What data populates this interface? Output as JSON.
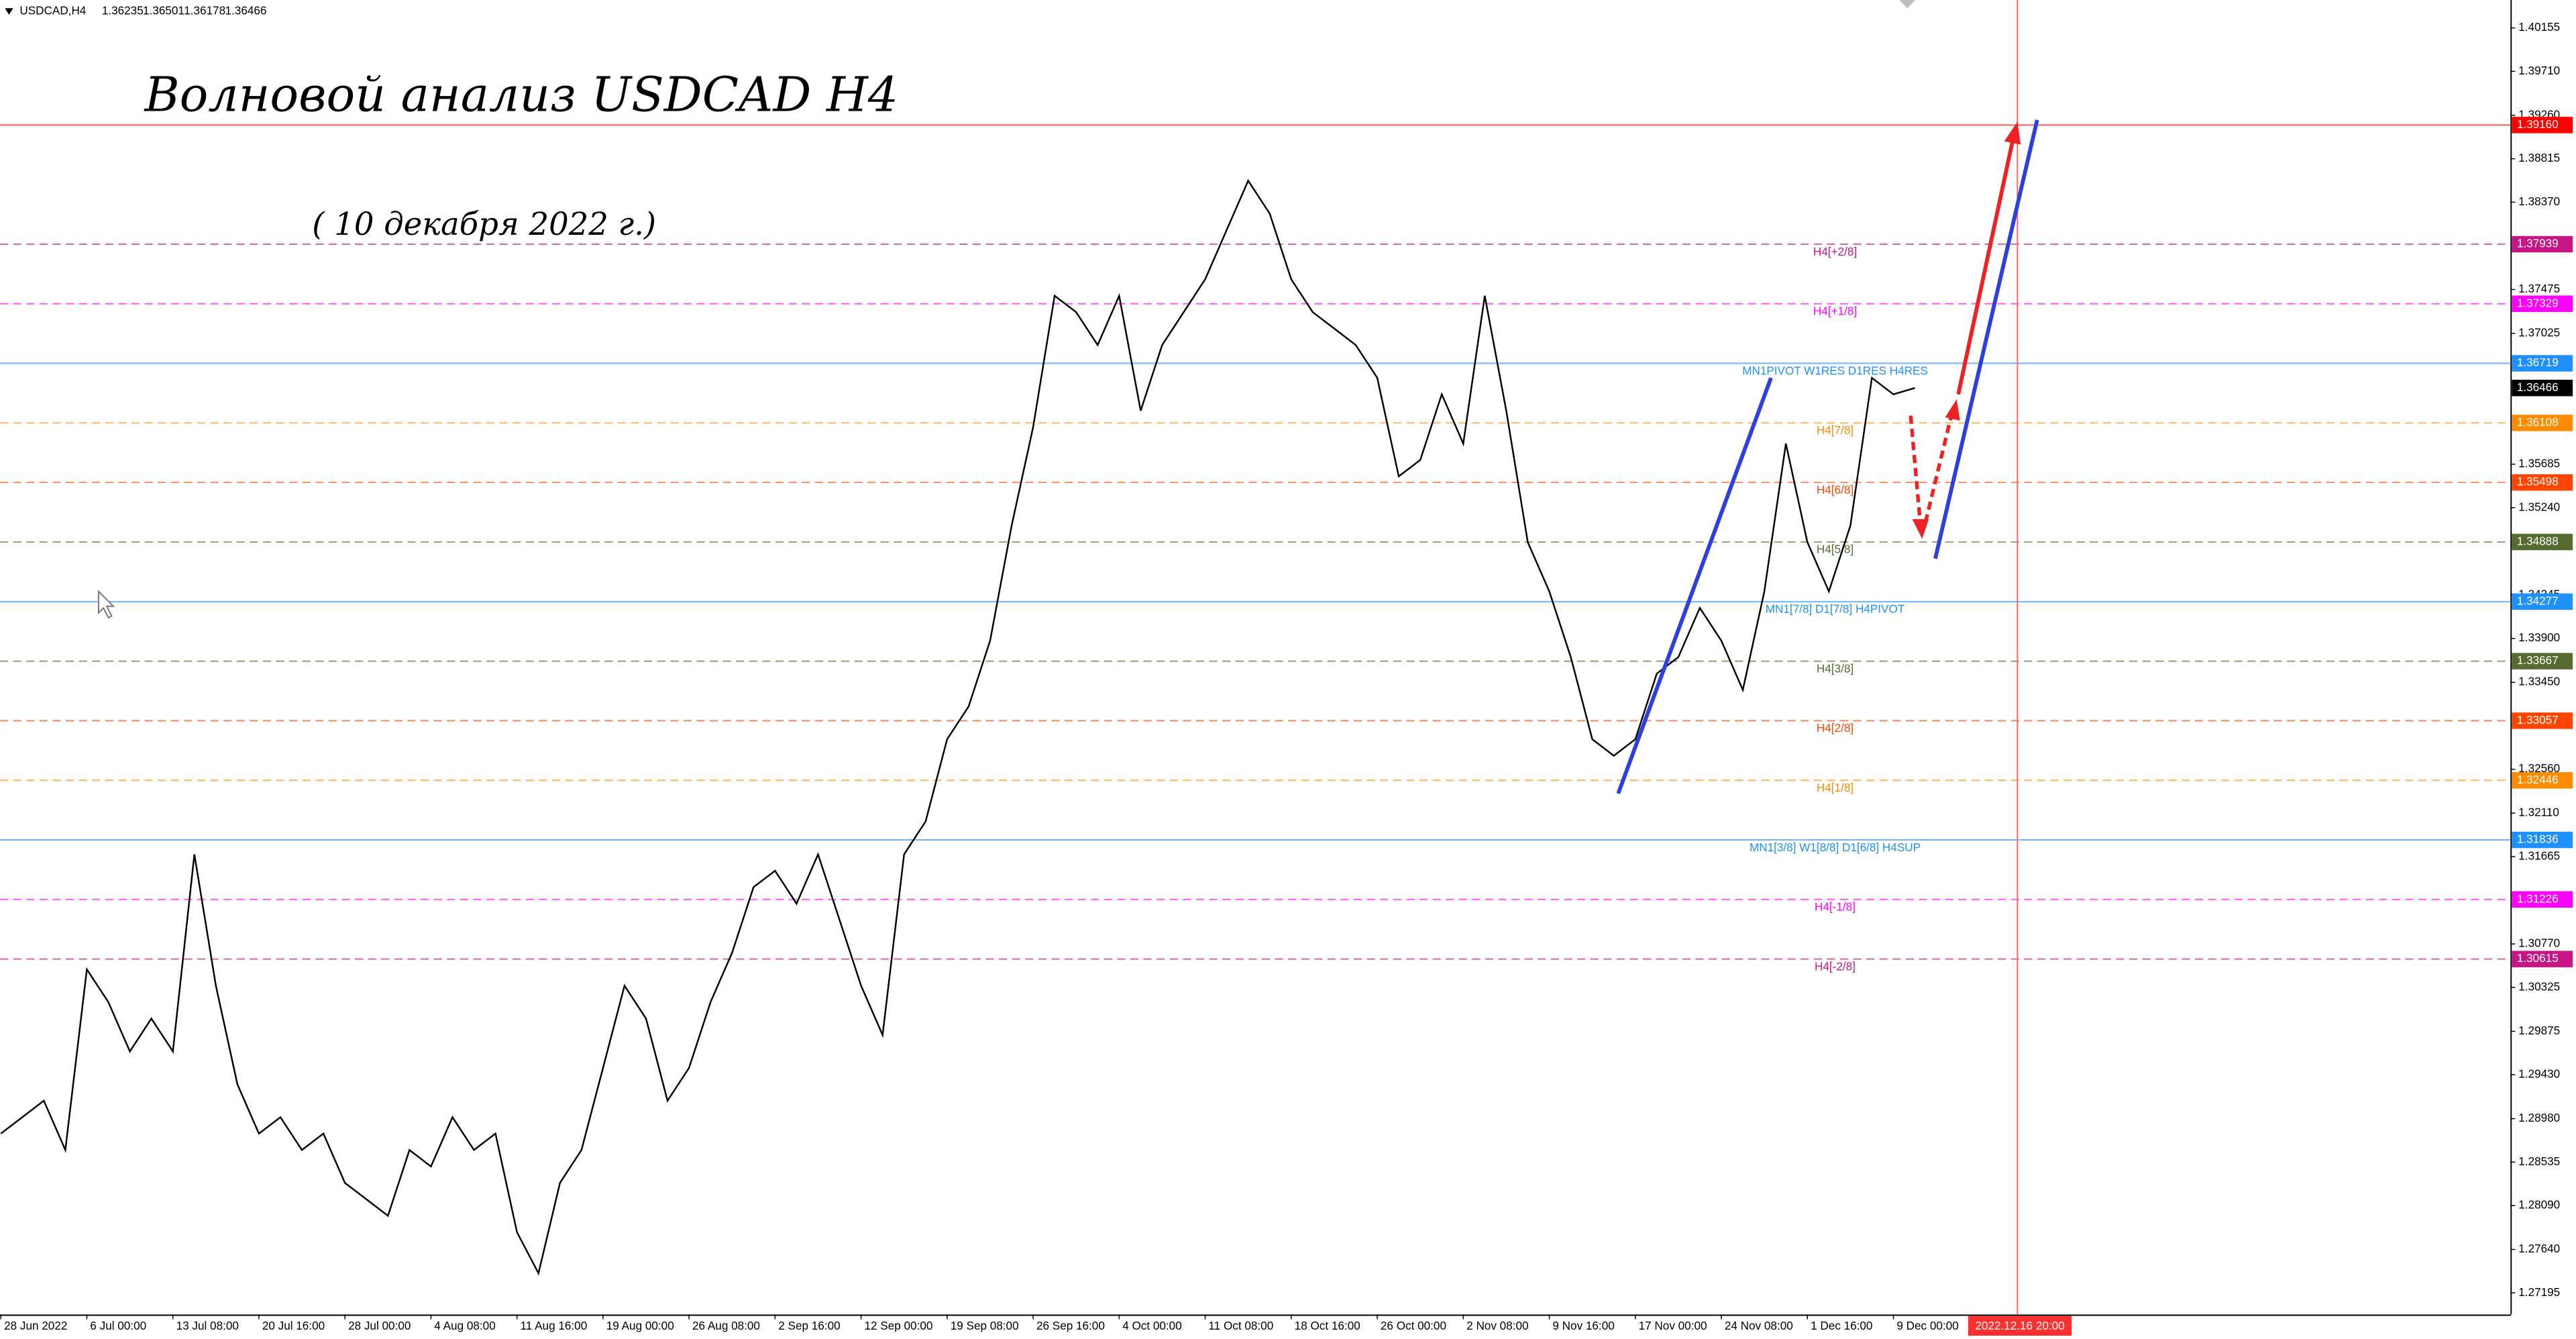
{
  "chart_data": {
    "type": "line",
    "symbol": "USDCAD,H4",
    "ohlc": [
      1.36235,
      1.36501,
      1.36178,
      1.36466
    ],
    "title": "Волновой анализ USDCAD H4",
    "subtitle": "( 10 декабря 2022 г.)",
    "color": "#000000",
    "grid": false,
    "categories": [
      "28 Jun 2022",
      null,
      null,
      null,
      "6 Jul 00:00",
      null,
      null,
      null,
      "13 Jul 08:00",
      null,
      null,
      null,
      "20 Jul 16:00",
      null,
      null,
      null,
      "28 Jul 00:00",
      null,
      null,
      null,
      "4 Aug 08:00",
      null,
      null,
      null,
      "11 Aug 16:00",
      null,
      null,
      null,
      "19 Aug 00:00",
      null,
      null,
      null,
      "26 Aug 08:00",
      null,
      null,
      null,
      "2 Sep 16:00",
      null,
      null,
      null,
      "12 Sep 00:00",
      null,
      null,
      null,
      "19 Sep 08:00",
      null,
      null,
      null,
      "26 Sep 16:00",
      null,
      null,
      null,
      "4 Oct 00:00",
      null,
      null,
      null,
      "11 Oct 08:00",
      null,
      null,
      null,
      "18 Oct 16:00",
      null,
      null,
      null,
      "26 Oct 00:00",
      null,
      null,
      null,
      "2 Nov 08:00",
      null,
      null,
      null,
      "9 Nov 16:00",
      null,
      null,
      null,
      "17 Nov 00:00",
      null,
      null,
      null,
      "24 Nov 08:00",
      null,
      null,
      null,
      "1 Dec 16:00",
      null,
      null,
      null,
      "9 Dec 00:00",
      null
    ],
    "values": [
      1.28827,
      1.28995,
      1.29164,
      1.28659,
      1.3051,
      1.30174,
      1.29669,
      1.30005,
      1.29669,
      1.31688,
      1.30342,
      1.29332,
      1.28827,
      1.28995,
      1.28659,
      1.28827,
      1.28322,
      1.28154,
      1.27985,
      1.28659,
      1.2849,
      1.28995,
      1.28659,
      1.28827,
      1.27817,
      1.27396,
      1.28322,
      1.28659,
      1.295,
      1.30342,
      1.30005,
      1.29164,
      1.295,
      1.30174,
      1.30678,
      1.31352,
      1.3152,
      1.31183,
      1.31688,
      1.31015,
      1.30342,
      1.29837,
      1.31688,
      1.32025,
      1.32867,
      1.33203,
      1.33877,
      1.35055,
      1.36065,
      1.37411,
      1.37243,
      1.36906,
      1.37411,
      1.36233,
      1.36906,
      1.37243,
      1.3758,
      1.38085,
      1.3859,
      1.38253,
      1.3758,
      1.37243,
      1.37075,
      1.36906,
      1.3657,
      1.3556,
      1.35728,
      1.36401,
      1.35896,
      1.37411,
      1.36233,
      1.34886,
      1.34382,
      1.33708,
      1.32867,
      1.32698,
      1.32867,
      1.3354,
      1.33708,
      1.34213,
      1.33877,
      1.33372,
      1.34382,
      1.35896,
      1.34886,
      1.34382,
      1.35055,
      1.3657,
      1.36401,
      1.36466
    ],
    "ylim": [
      1.26975,
      1.40441
    ],
    "yticks": [
      1.40155,
      {
        "value": 1.3971,
        "label": "1.39710"
      },
      {
        "value": 1.3926,
        "label": "1.39260"
      },
      1.38815,
      {
        "value": 1.3837,
        "label": "1.38370"
      },
      1.37475,
      1.37025,
      1.35685,
      {
        "value": 1.3524,
        "label": "1.35240"
      },
      1.34345,
      {
        "value": 1.339,
        "label": "1.33900"
      },
      {
        "value": 1.3345,
        "label": "1.33450"
      },
      {
        "value": 1.3256,
        "label": "1.32560"
      },
      {
        "value": 1.3211,
        "label": "1.32110"
      },
      1.31665,
      {
        "value": 1.3077,
        "label": "1.30770"
      },
      1.30325,
      1.29875,
      {
        "value": 1.2943,
        "label": "1.29430"
      },
      {
        "value": 1.2898,
        "label": "1.28980"
      },
      1.28535,
      {
        "value": 1.2809,
        "label": "1.28090"
      },
      {
        "value": 1.2764,
        "label": "1.27640"
      },
      1.27195
    ],
    "levels": [
      {
        "value": 1.3916,
        "label": "1.39160",
        "color": "#ff0000",
        "style": "solid"
      },
      {
        "value": 1.37939,
        "name": "H4[+2/8]",
        "color": "#c71585",
        "style": "dash"
      },
      {
        "value": 1.37329,
        "name": "H4[+1/8]",
        "color": "#ff00ff",
        "style": "dash"
      },
      {
        "value": 1.36719,
        "name": "MN1PIVOT W1RES D1RES H4RES",
        "color": "#1e90ff",
        "style": "solid"
      },
      {
        "value": 1.36108,
        "name": "H4[7/8]",
        "color": "#ff8c00",
        "style": "dash"
      },
      {
        "value": 1.35498,
        "name": "H4[6/8]",
        "color": "#ff4500",
        "style": "dash"
      },
      {
        "value": 1.34888,
        "name": "H4[5/8]",
        "color": "#556b2f",
        "style": "dash"
      },
      {
        "value": 1.34277,
        "name": "MN1[7/8] D1[7/8] H4PIVOT",
        "color": "#1e90ff",
        "style": "solid"
      },
      {
        "value": 1.33667,
        "name": "H4[3/8]",
        "color": "#556b2f",
        "style": "dash"
      },
      {
        "value": 1.33057,
        "name": "H4[2/8]",
        "color": "#ff4500",
        "style": "dash"
      },
      {
        "value": 1.32446,
        "name": "H4[1/8]",
        "color": "#ff8c00",
        "style": "dash"
      },
      {
        "value": 1.31836,
        "name": "MN1[3/8] W1[8/8] D1[6/8] H4SUP",
        "color": "#1e90ff",
        "style": "solid"
      },
      {
        "value": 1.31226,
        "name": "H4[-1/8]",
        "color": "#ff00ff",
        "style": "dash"
      },
      {
        "value": 1.30615,
        "name": "H4[-2/8]",
        "color": "#c71585",
        "style": "dash"
      }
    ],
    "current_price": {
      "value": 1.36466,
      "color": "#000000"
    },
    "cursor_label": "2022.12.16 20:00"
  }
}
